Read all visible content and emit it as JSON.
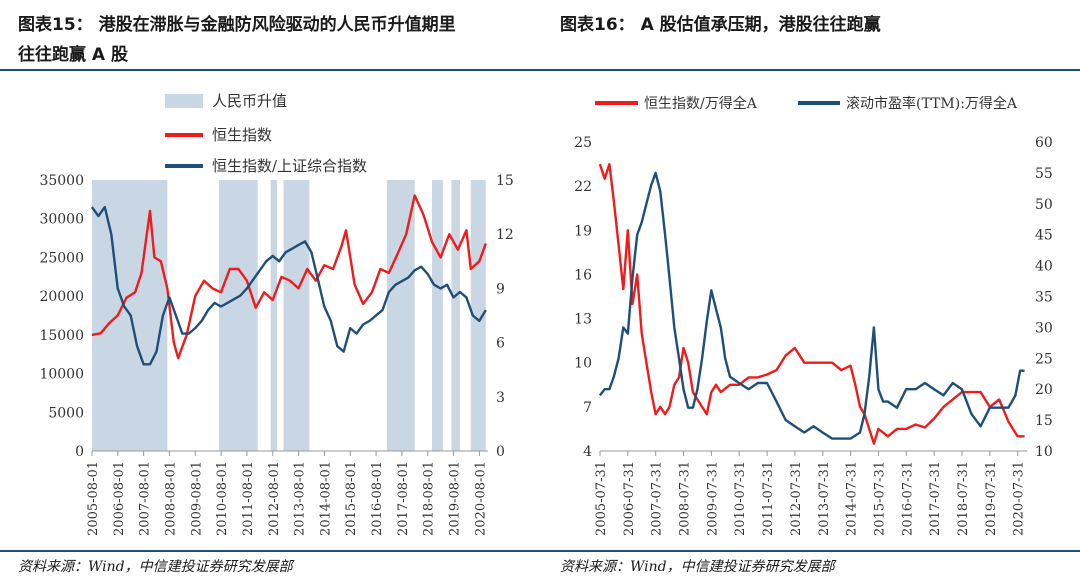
{
  "left_title_line1": "图表15： 港股在滞胀与金融防风险驱动的人民币升值期里",
  "left_title_line2": "往往跑赢 A 股",
  "right_title": "图表16： A 股估值承压期，港股往往跑赢",
  "source_left": "资料来源：Wind，中信建投证券研究发展部",
  "source_right": "资料来源：Wind，中信建投证券研究发展部",
  "chart_data": [
    {
      "type": "line",
      "legend": [
        "人民币升值",
        "恒生指数",
        "恒生指数/上证综合指数"
      ],
      "colors": {
        "shade": "#c9d6e3",
        "hsi": "#ee1c1c",
        "ratio": "#1f4e79"
      },
      "x_tick_labels": [
        "2005-08-01",
        "2006-08-01",
        "2007-08-01",
        "2008-08-01",
        "2009-08-01",
        "2010-08-01",
        "2011-08-01",
        "2012-08-01",
        "2013-08-01",
        "2014-08-01",
        "2015-08-01",
        "2016-08-01",
        "2017-08-01",
        "2018-08-01",
        "2019-08-01",
        "2020-08-01"
      ],
      "y_left_ticks": [
        "0",
        "5000",
        "10000",
        "15000",
        "20000",
        "25000",
        "30000",
        "35000"
      ],
      "y_right_ticks": [
        "0",
        "3",
        "6",
        "9",
        "12",
        "15"
      ],
      "y_left_lim": [
        0,
        35000
      ],
      "y_right_lim": [
        0,
        15
      ],
      "x_range": [
        2005.583,
        2020.917
      ],
      "appreciation_periods": [
        [
          2005.583,
          2008.5
        ],
        [
          2010.5,
          2012.0
        ],
        [
          2012.5,
          2012.75
        ],
        [
          2013.0,
          2014.0
        ],
        [
          2017.0,
          2018.08
        ],
        [
          2018.75,
          2019.17
        ],
        [
          2019.5,
          2019.83
        ],
        [
          2020.25,
          2020.83
        ]
      ],
      "series": [
        {
          "name": "恒生指数",
          "axis": "left",
          "x": [
            2005.58,
            2005.92,
            2006.25,
            2006.58,
            2006.92,
            2007.25,
            2007.5,
            2007.83,
            2008.0,
            2008.25,
            2008.5,
            2008.75,
            2008.92,
            2009.25,
            2009.58,
            2009.92,
            2010.25,
            2010.58,
            2010.92,
            2011.25,
            2011.58,
            2011.92,
            2012.25,
            2012.58,
            2012.92,
            2013.25,
            2013.58,
            2013.92,
            2014.25,
            2014.58,
            2014.92,
            2015.25,
            2015.42,
            2015.75,
            2016.08,
            2016.42,
            2016.75,
            2017.08,
            2017.42,
            2017.75,
            2018.08,
            2018.42,
            2018.75,
            2019.08,
            2019.42,
            2019.75,
            2020.08,
            2020.25,
            2020.58,
            2020.83
          ],
          "y": [
            15000,
            15200,
            16500,
            17500,
            19800,
            20500,
            23000,
            31000,
            25000,
            24500,
            21000,
            14000,
            12000,
            15000,
            20000,
            22000,
            21000,
            20500,
            23500,
            23500,
            22000,
            18500,
            20500,
            19500,
            22500,
            22000,
            21000,
            23500,
            22000,
            24000,
            23500,
            26500,
            28500,
            21500,
            19000,
            20500,
            23500,
            23000,
            25500,
            28000,
            33000,
            30500,
            27000,
            25000,
            28000,
            26000,
            28500,
            23500,
            24500,
            26800
          ]
        },
        {
          "name": "恒生指数/上证综合指数",
          "axis": "right",
          "x": [
            2005.58,
            2005.83,
            2006.08,
            2006.33,
            2006.58,
            2006.83,
            2007.08,
            2007.33,
            2007.58,
            2007.83,
            2008.08,
            2008.33,
            2008.58,
            2008.83,
            2009.08,
            2009.33,
            2009.58,
            2009.83,
            2010.08,
            2010.33,
            2010.58,
            2010.83,
            2011.08,
            2011.33,
            2011.58,
            2011.83,
            2012.08,
            2012.33,
            2012.58,
            2012.83,
            2013.08,
            2013.33,
            2013.58,
            2013.83,
            2014.08,
            2014.33,
            2014.58,
            2014.83,
            2015.08,
            2015.33,
            2015.58,
            2015.83,
            2016.08,
            2016.33,
            2016.58,
            2016.83,
            2017.08,
            2017.33,
            2017.58,
            2017.83,
            2018.08,
            2018.33,
            2018.58,
            2018.83,
            2019.08,
            2019.33,
            2019.58,
            2019.83,
            2020.08,
            2020.33,
            2020.58,
            2020.83
          ],
          "y": [
            13.5,
            13,
            13.5,
            12,
            9,
            8,
            7.5,
            5.8,
            4.8,
            4.8,
            5.5,
            7.5,
            8.5,
            7.5,
            6.5,
            6.5,
            6.8,
            7.2,
            7.8,
            8.2,
            8,
            8.2,
            8.4,
            8.6,
            9,
            9.5,
            10,
            10.5,
            10.8,
            10.5,
            11,
            11.2,
            11.4,
            11.6,
            11,
            9.5,
            8,
            7.2,
            5.8,
            5.5,
            6.8,
            6.5,
            7,
            7.2,
            7.5,
            7.8,
            8.8,
            9.2,
            9.4,
            9.6,
            10,
            10.2,
            9.8,
            9.2,
            9,
            9.2,
            8.5,
            8.8,
            8.5,
            7.5,
            7.2,
            7.8
          ]
        }
      ]
    },
    {
      "type": "line",
      "legend": [
        "恒生指数/万得全A",
        "滚动市盈率(TTM):万得全A"
      ],
      "colors": {
        "ratio": "#ee1c1c",
        "pe": "#1f4e79"
      },
      "x_tick_labels": [
        "2005-07-31",
        "2006-07-31",
        "2007-07-31",
        "2008-07-31",
        "2009-07-31",
        "2010-07-31",
        "2011-07-31",
        "2012-07-31",
        "2013-07-31",
        "2014-07-31",
        "2015-07-31",
        "2016-07-31",
        "2017-07-31",
        "2018-07-31",
        "2019-07-31",
        "2020-07-31"
      ],
      "y_left_ticks": [
        "4",
        "7",
        "10",
        "13",
        "16",
        "19",
        "22",
        "25"
      ],
      "y_right_ticks": [
        "10",
        "15",
        "20",
        "25",
        "30",
        "35",
        "40",
        "45",
        "50",
        "55",
        "60"
      ],
      "y_left_lim": [
        4,
        25
      ],
      "y_right_lim": [
        10,
        60
      ],
      "x_range": [
        2005.583,
        2020.917
      ],
      "series": [
        {
          "name": "恒生指数/万得全A",
          "axis": "left",
          "x": [
            2005.58,
            2005.75,
            2005.92,
            2006.08,
            2006.25,
            2006.42,
            2006.58,
            2006.75,
            2006.92,
            2007.08,
            2007.25,
            2007.42,
            2007.58,
            2007.75,
            2007.92,
            2008.08,
            2008.25,
            2008.42,
            2008.58,
            2008.75,
            2008.92,
            2009.08,
            2009.25,
            2009.42,
            2009.58,
            2009.75,
            2009.92,
            2010.25,
            2010.58,
            2010.92,
            2011.25,
            2011.58,
            2011.92,
            2012.25,
            2012.58,
            2012.75,
            2012.92,
            2013.25,
            2013.58,
            2013.92,
            2014.25,
            2014.58,
            2014.75,
            2014.92,
            2015.08,
            2015.25,
            2015.42,
            2015.58,
            2015.92,
            2016.25,
            2016.58,
            2016.92,
            2017.25,
            2017.58,
            2017.92,
            2018.25,
            2018.58,
            2018.92,
            2019.25,
            2019.58,
            2019.92,
            2020.25,
            2020.58,
            2020.83
          ],
          "y": [
            23.5,
            22.5,
            23.5,
            21,
            18,
            15,
            19,
            14,
            16,
            12,
            10,
            8,
            6.5,
            7,
            6.5,
            7,
            8.5,
            9,
            11,
            10,
            8,
            7.5,
            7,
            6.5,
            8,
            8.5,
            8,
            8.5,
            8.5,
            9,
            9,
            9.2,
            9.5,
            10.5,
            11,
            10.5,
            10,
            10,
            10,
            10,
            9.5,
            9.8,
            8.5,
            7,
            6.5,
            5.5,
            4.5,
            5.5,
            5,
            5.5,
            5.5,
            5.8,
            5.6,
            6.2,
            7,
            7.5,
            8,
            8,
            8,
            7,
            7.5,
            6,
            5,
            5
          ]
        },
        {
          "name": "滚动市盈率(TTM):万得全A",
          "axis": "right",
          "x": [
            2005.58,
            2005.75,
            2005.92,
            2006.08,
            2006.25,
            2006.42,
            2006.58,
            2006.75,
            2006.92,
            2007.08,
            2007.25,
            2007.42,
            2007.58,
            2007.75,
            2007.92,
            2008.08,
            2008.25,
            2008.42,
            2008.58,
            2008.75,
            2008.92,
            2009.08,
            2009.25,
            2009.42,
            2009.58,
            2009.75,
            2009.92,
            2010.08,
            2010.25,
            2010.58,
            2010.92,
            2011.25,
            2011.58,
            2011.92,
            2012.25,
            2012.58,
            2012.92,
            2013.25,
            2013.58,
            2013.92,
            2014.25,
            2014.58,
            2014.92,
            2015.08,
            2015.25,
            2015.42,
            2015.58,
            2015.75,
            2015.92,
            2016.25,
            2016.58,
            2016.92,
            2017.25,
            2017.58,
            2017.92,
            2018.25,
            2018.58,
            2018.92,
            2019.25,
            2019.58,
            2019.92,
            2020.25,
            2020.5,
            2020.67,
            2020.83
          ],
          "y": [
            19,
            20,
            20,
            22,
            25,
            30,
            29,
            38,
            45,
            47,
            50,
            53,
            55,
            52,
            45,
            38,
            30,
            25,
            20,
            17,
            17,
            20,
            25,
            31,
            36,
            33,
            30,
            25,
            22,
            21,
            20,
            21,
            21,
            18,
            15,
            14,
            13,
            14,
            13,
            12,
            12,
            12,
            13,
            16,
            22,
            30,
            20,
            18,
            18,
            17,
            20,
            20,
            21,
            20,
            19,
            21,
            20,
            16,
            14,
            17,
            17,
            17,
            19,
            23,
            23
          ]
        }
      ]
    }
  ]
}
